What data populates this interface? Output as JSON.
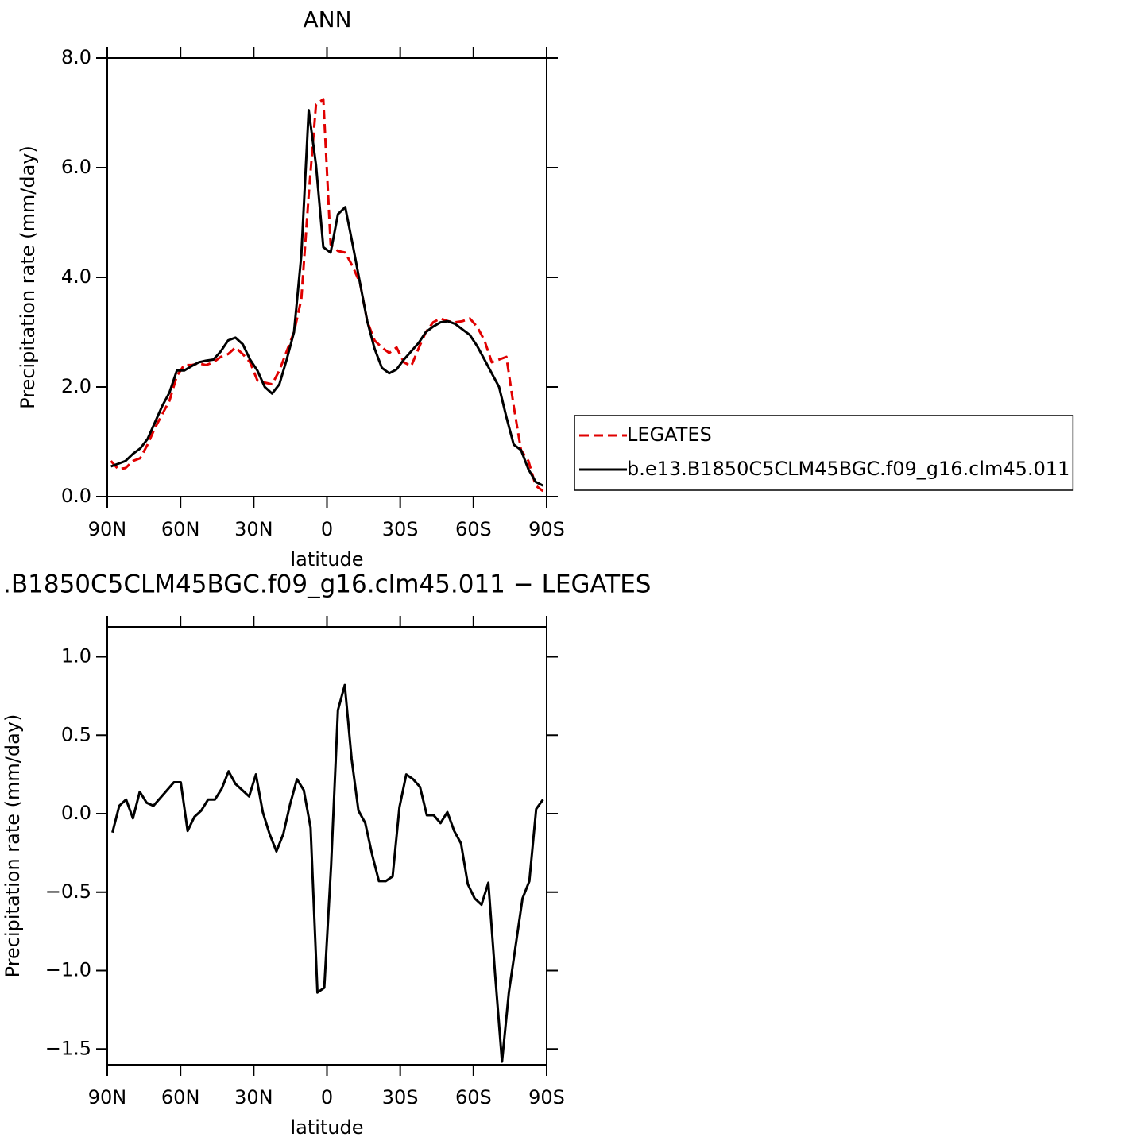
{
  "chart_data": [
    {
      "type": "line",
      "title": "ANN",
      "xlabel": "latitude",
      "ylabel": "Precipitation rate (mm/day)",
      "xlim": [
        90,
        -90
      ],
      "xticks": [
        {
          "value": 90,
          "label": "90N"
        },
        {
          "value": 60,
          "label": "60N"
        },
        {
          "value": 30,
          "label": "30N"
        },
        0,
        {
          "value": -30,
          "label": "30S"
        },
        {
          "value": -60,
          "label": "60S"
        },
        {
          "value": -90,
          "label": "90S"
        }
      ],
      "ylim": [
        0,
        8
      ],
      "yticks": [
        {
          "value": 0,
          "label": "0.0"
        },
        {
          "value": 2,
          "label": "2.0"
        },
        {
          "value": 4,
          "label": "4.0"
        },
        {
          "value": 6,
          "label": "6.0"
        },
        {
          "value": 8,
          "label": "8.0"
        }
      ],
      "legend": "right",
      "x": [
        88.5,
        85.5,
        82.5,
        79.5,
        76.5,
        73.5,
        70.5,
        67.5,
        64.5,
        61.5,
        58.5,
        55.5,
        52.5,
        49.5,
        46.5,
        43.5,
        40.5,
        37.5,
        34.5,
        31.5,
        28.5,
        25.5,
        22.5,
        19.5,
        16.5,
        13.5,
        10.5,
        7.5,
        4.5,
        1.5,
        -1.5,
        -4.5,
        -7.5,
        -10.5,
        -13.5,
        -16.5,
        -19.5,
        -22.5,
        -25.5,
        -28.5,
        -31.5,
        -34.5,
        -37.5,
        -40.5,
        -43.5,
        -46.5,
        -49.5,
        -52.5,
        -55.5,
        -58.5,
        -61.5,
        -64.5,
        -67.5,
        -70.5,
        -73.5,
        -76.5,
        -79.5,
        -82.5,
        -85.5,
        -88.5
      ],
      "series": [
        {
          "name": "LEGATES",
          "color": "#e00000",
          "dashed": true,
          "values": [
            0.65,
            0.5,
            0.52,
            0.65,
            0.7,
            0.95,
            1.25,
            1.5,
            1.75,
            2.2,
            2.4,
            2.4,
            2.43,
            2.4,
            2.45,
            2.55,
            2.6,
            2.72,
            2.6,
            2.45,
            2.12,
            2.08,
            2.05,
            2.3,
            2.65,
            3.0,
            3.6,
            5.5,
            7.15,
            7.25,
            4.6,
            4.48,
            4.45,
            4.2,
            3.9,
            3.2,
            2.85,
            2.72,
            2.62,
            2.72,
            2.45,
            2.38,
            2.7,
            3.0,
            3.18,
            3.25,
            3.2,
            3.18,
            3.2,
            3.25,
            3.1,
            2.85,
            2.45,
            2.5,
            2.55,
            1.65,
            0.85,
            0.65,
            0.2,
            0.1
          ]
        },
        {
          "name": "b.e13.B1850C5CLM45BGC.f09_g16.clm45.011",
          "color": "#000000",
          "dashed": false,
          "values": [
            0.55,
            0.6,
            0.65,
            0.78,
            0.88,
            1.05,
            1.35,
            1.65,
            1.9,
            2.3,
            2.3,
            2.38,
            2.45,
            2.48,
            2.5,
            2.65,
            2.85,
            2.9,
            2.78,
            2.5,
            2.3,
            2.0,
            1.88,
            2.05,
            2.5,
            3.0,
            4.4,
            7.05,
            6.05,
            4.55,
            4.45,
            5.15,
            5.28,
            4.6,
            3.9,
            3.2,
            2.7,
            2.35,
            2.25,
            2.32,
            2.5,
            2.65,
            2.8,
            3.0,
            3.1,
            3.18,
            3.2,
            3.15,
            3.05,
            2.95,
            2.75,
            2.5,
            2.25,
            2.0,
            1.45,
            0.95,
            0.85,
            0.5,
            0.27,
            0.2
          ]
        }
      ]
    },
    {
      "type": "line",
      "title": ".B1850C5CLM45BGC.f09_g16.clm45.011 − LEGATES",
      "xlabel": "latitude",
      "ylabel": "Precipitation rate (mm/day)",
      "xlim": [
        90,
        -90
      ],
      "xticks": [
        {
          "value": 90,
          "label": "90N"
        },
        {
          "value": 60,
          "label": "60N"
        },
        {
          "value": 30,
          "label": "30N"
        },
        0,
        {
          "value": -30,
          "label": "30S"
        },
        {
          "value": -60,
          "label": "60S"
        },
        {
          "value": -90,
          "label": "90S"
        }
      ],
      "ylim": [
        -1.6,
        1.19
      ],
      "yticks": [
        {
          "value": -1.5,
          "label": "−1.5"
        },
        {
          "value": -1,
          "label": "−1.0"
        },
        {
          "value": -0.5,
          "label": "−0.5"
        },
        {
          "value": 0,
          "label": "0.0"
        },
        0.5,
        {
          "value": 1,
          "label": "1.0"
        }
      ],
      "x": [
        87.9,
        85.1,
        82.3,
        79.5,
        76.7,
        73.9,
        71.1,
        68.3,
        65.5,
        62.7,
        59.9,
        57.1,
        54.3,
        51.5,
        48.7,
        45.9,
        43.1,
        40.3,
        37.5,
        34.7,
        31.9,
        29.1,
        26.3,
        23.5,
        20.7,
        17.9,
        15.1,
        12.3,
        9.5,
        6.7,
        3.9,
        1.1,
        -1.7,
        -4.5,
        -7.3,
        -10.1,
        -12.9,
        -15.7,
        -18.5,
        -21.3,
        -24.1,
        -26.9,
        -29.7,
        -32.5,
        -35.3,
        -38.1,
        -40.9,
        -43.7,
        -46.5,
        -49.3,
        -52.1,
        -54.9,
        -57.7,
        -60.5,
        -63.3,
        -66.1,
        -68.9,
        -71.7,
        -74.5,
        -77.3,
        -80.1,
        -82.9,
        -85.7,
        -88.5
      ],
      "series": [
        {
          "color": "#000000",
          "dashed": false,
          "values": [
            -0.12,
            0.05,
            0.09,
            -0.03,
            0.14,
            0.07,
            0.05,
            0.1,
            0.15,
            0.2,
            0.2,
            -0.11,
            -0.02,
            0.02,
            0.09,
            0.09,
            0.16,
            0.27,
            0.19,
            0.15,
            0.11,
            0.25,
            0.01,
            -0.13,
            -0.24,
            -0.13,
            0.06,
            0.22,
            0.15,
            -0.09,
            -1.14,
            -1.11,
            -0.33,
            0.66,
            0.82,
            0.35,
            0.02,
            -0.06,
            -0.26,
            -0.43,
            -0.43,
            -0.4,
            0.04,
            0.25,
            0.22,
            0.17,
            -0.01,
            -0.01,
            -0.06,
            0.01,
            -0.11,
            -0.19,
            -0.45,
            -0.54,
            -0.58,
            -0.44,
            -1.03,
            -1.58,
            -1.14,
            -0.84,
            -0.54,
            -0.43,
            0.03,
            0.09
          ]
        }
      ]
    }
  ]
}
